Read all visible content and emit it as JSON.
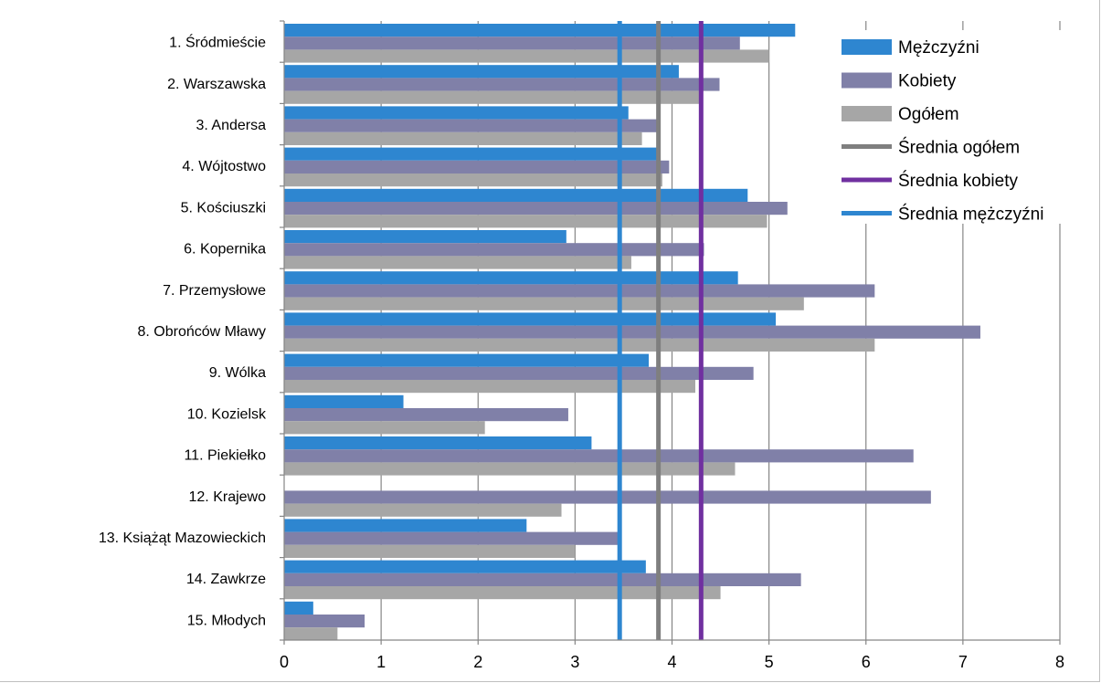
{
  "chart_data": {
    "type": "bar",
    "orientation": "horizontal",
    "title": "",
    "xlabel": "",
    "ylabel": "",
    "xlim": [
      0,
      8
    ],
    "xticks": [
      0,
      1,
      2,
      3,
      4,
      5,
      6,
      7,
      8
    ],
    "grid": "vertical",
    "legend_position": "top-right",
    "categories": [
      "1. Śródmieście",
      "2. Warszawska",
      "3. Andersa",
      "4. Wójtostwo",
      "5. Kościuszki",
      "6. Kopernika",
      "7. Przemysłowe",
      "8. Obrońców Mławy",
      "9. Wólka",
      "10. Kozielsk",
      "11. Piekiełko",
      "12. Krajewo",
      "13. Książąt Mazowieckich",
      "14. Zawkrze",
      "15. Młodych"
    ],
    "series": [
      {
        "name": "Mężczyźni",
        "color": "#2e86d0",
        "values": [
          5.27,
          4.07,
          3.55,
          3.84,
          4.78,
          2.91,
          4.68,
          5.07,
          3.76,
          1.23,
          3.17,
          0,
          2.5,
          3.73,
          0.3
        ]
      },
      {
        "name": "Kobiety",
        "color": "#8080a8",
        "values": [
          4.7,
          4.49,
          3.84,
          3.97,
          5.19,
          4.33,
          6.09,
          7.18,
          4.84,
          2.93,
          6.49,
          6.67,
          3.45,
          5.33,
          0.83
        ]
      },
      {
        "name": "Ogółem",
        "color": "#a6a6a6",
        "values": [
          5.0,
          4.28,
          3.69,
          3.9,
          4.98,
          3.58,
          5.36,
          6.09,
          4.24,
          2.07,
          4.65,
          2.86,
          3.0,
          4.5,
          0.55
        ]
      }
    ],
    "reference_lines": [
      {
        "name": "Średnia ogółem",
        "value": 3.86,
        "color": "#7f7f7f"
      },
      {
        "name": "Średnia kobiety",
        "value": 4.3,
        "color": "#7030a0"
      },
      {
        "name": "Średnia mężczyźni",
        "value": 3.46,
        "color": "#2e86d0"
      }
    ]
  }
}
